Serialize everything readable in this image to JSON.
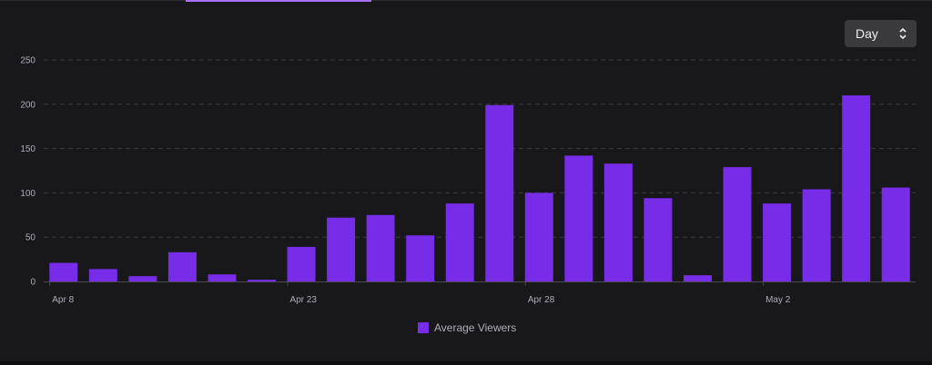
{
  "range_select": {
    "value": "Day",
    "icon": "chevron-up-down-icon"
  },
  "colors": {
    "bar": "#772ce8",
    "grid": "#3a3a3d",
    "axis_text": "#adadb8",
    "background": "#18181b",
    "tab_indicator": "#a970ff"
  },
  "chart_data": {
    "type": "bar",
    "title": "",
    "xlabel": "",
    "ylabel": "",
    "ylim": [
      0,
      250
    ],
    "yticks": [
      0,
      50,
      100,
      150,
      200,
      250
    ],
    "x_tick_labels": [
      {
        "index": 0,
        "label": "Apr 8"
      },
      {
        "index": 6,
        "label": "Apr 23"
      },
      {
        "index": 12,
        "label": "Apr 28"
      },
      {
        "index": 18,
        "label": "May 2"
      }
    ],
    "series": [
      {
        "name": "Average Viewers",
        "values": [
          21,
          14,
          6,
          33,
          8,
          2,
          39,
          72,
          75,
          52,
          88,
          199,
          100,
          142,
          133,
          94,
          7,
          129,
          88,
          104,
          210,
          106
        ]
      }
    ],
    "legend_position": "bottom-center",
    "grid": true
  }
}
